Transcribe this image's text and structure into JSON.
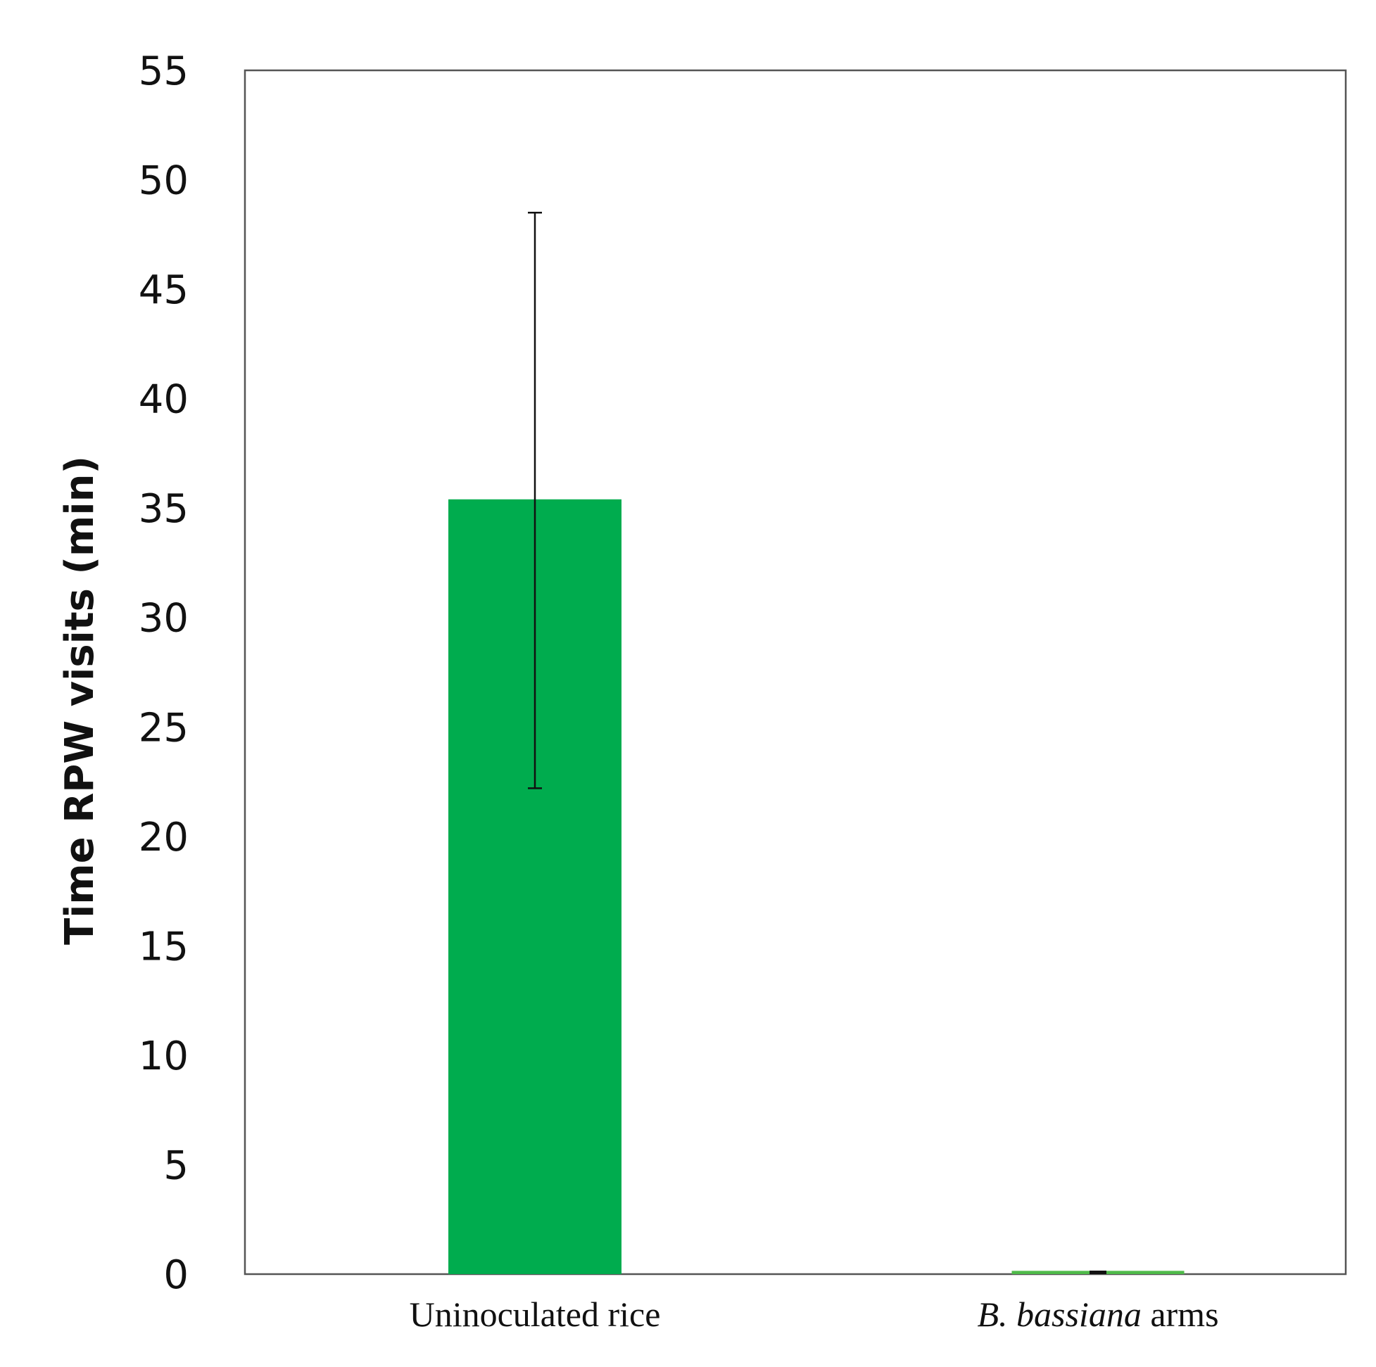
{
  "chart_data": {
    "type": "bar",
    "title": "",
    "ylabel": "Time RPW visits (min)",
    "xlabel": "",
    "ylim": [
      0,
      55
    ],
    "yticks": [
      0,
      5,
      10,
      15,
      20,
      25,
      30,
      35,
      40,
      45,
      50,
      55
    ],
    "yticklabels": [
      "0",
      "5",
      "10",
      "15",
      "20",
      "25",
      "30",
      "35",
      "40",
      "45",
      "50",
      "55"
    ],
    "categories": [
      {
        "label": "Uninoculated rice",
        "label_prefix_italic": "",
        "label_rest": "Uninoculated rice"
      },
      {
        "label": "B. bassiana arms",
        "label_prefix_italic": "B. bassiana",
        "label_rest": " arms"
      }
    ],
    "values": [
      35.4,
      0.15
    ],
    "error_low": [
      22.2,
      0.1
    ],
    "error_high": [
      48.5,
      0.2
    ],
    "bar_colors": [
      "#00ac4e",
      "#4fbb4a"
    ],
    "error_color": "#111111",
    "grid": false,
    "legend": "none"
  }
}
